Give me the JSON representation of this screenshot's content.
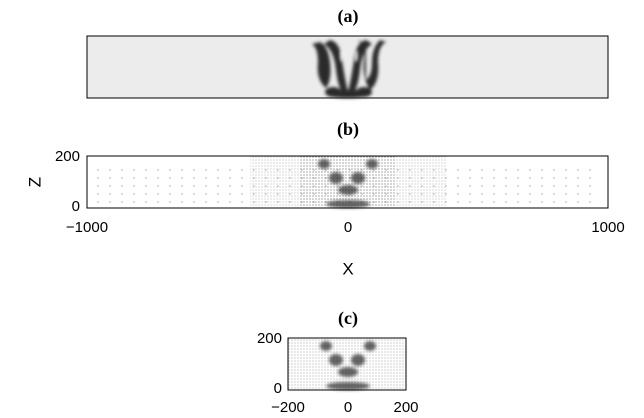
{
  "panels": [
    {
      "label": "(a)"
    },
    {
      "label": "(b)",
      "x_label": "X",
      "y_label": "Z",
      "xticks": [
        "−1000",
        "0",
        "1000"
      ],
      "yticks": [
        "200",
        "0"
      ]
    },
    {
      "label": "(c)",
      "xticks": [
        "−200",
        "0",
        "200"
      ],
      "yticks": [
        "200",
        "0"
      ]
    }
  ]
}
